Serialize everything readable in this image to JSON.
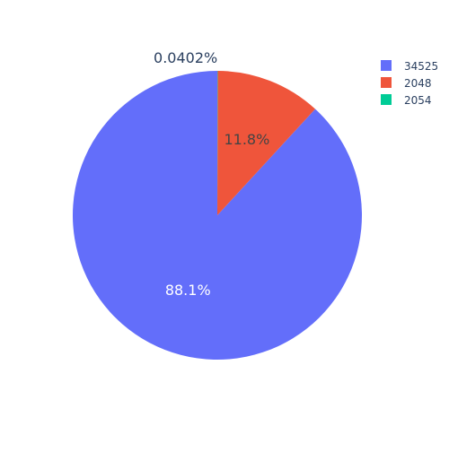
{
  "chart_data": {
    "type": "pie",
    "title": "",
    "slices": [
      {
        "label": "34525",
        "value": 2197,
        "percent_text": "88.1%",
        "color": "#636efa",
        "text_color": "#ffffff"
      },
      {
        "label": "2048",
        "value": 294,
        "percent_text": "11.8%",
        "color": "#ef553b",
        "text_color": "#444444"
      },
      {
        "label": "2054",
        "value": 1,
        "percent_text": "0.0402%",
        "color": "#00cc96",
        "text_color": "#444444"
      }
    ],
    "legend": {
      "placement": "top-right",
      "items": [
        "34525",
        "2048",
        "2054"
      ]
    }
  }
}
